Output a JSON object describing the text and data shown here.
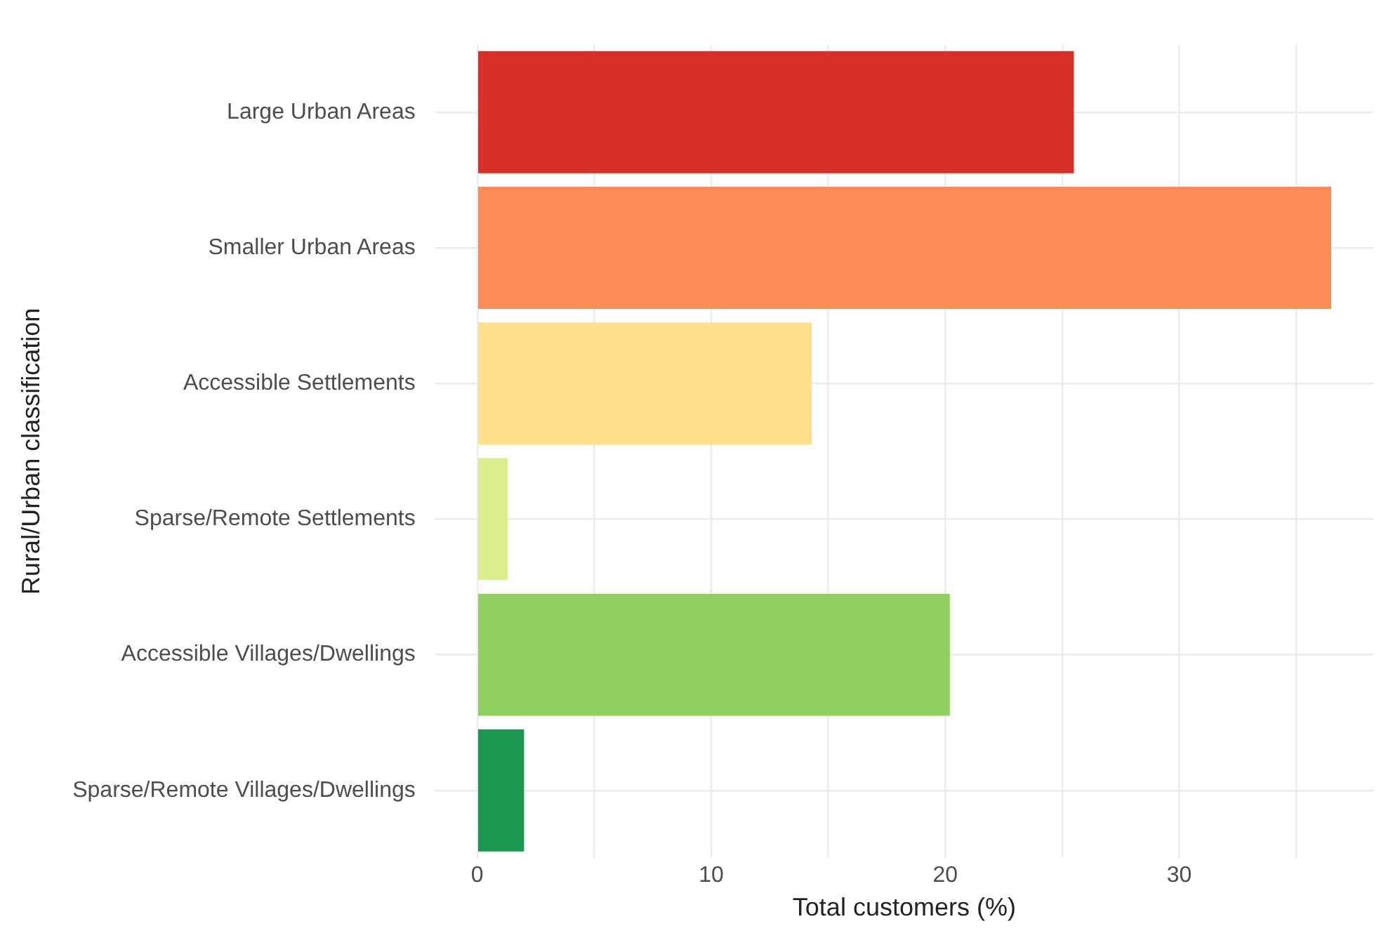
{
  "chart_data": {
    "type": "bar",
    "orientation": "horizontal",
    "xlabel": "Total customers (%)",
    "ylabel": "Rural/Urban classification",
    "categories": [
      "Large Urban Areas",
      "Smaller Urban Areas",
      "Accessible Settlements",
      "Sparse/Remote Settlements",
      "Accessible Villages/Dwellings",
      "Sparse/Remote Villages/Dwellings"
    ],
    "values": [
      25.5,
      36.5,
      14.3,
      1.3,
      20.2,
      2.0
    ],
    "colors": [
      "#d73027",
      "#fc8d59",
      "#fee08b",
      "#d9ef8b",
      "#91cf60",
      "#1a9850"
    ],
    "xlim": [
      -1.8,
      38.3
    ],
    "xticks": [
      0,
      {
        "value": 5,
        "label": null
      },
      10,
      {
        "value": 15,
        "label": null
      },
      20,
      {
        "value": 25,
        "label": null
      },
      30,
      {
        "value": 35,
        "label": null
      }
    ],
    "grid": true,
    "legend": false
  }
}
